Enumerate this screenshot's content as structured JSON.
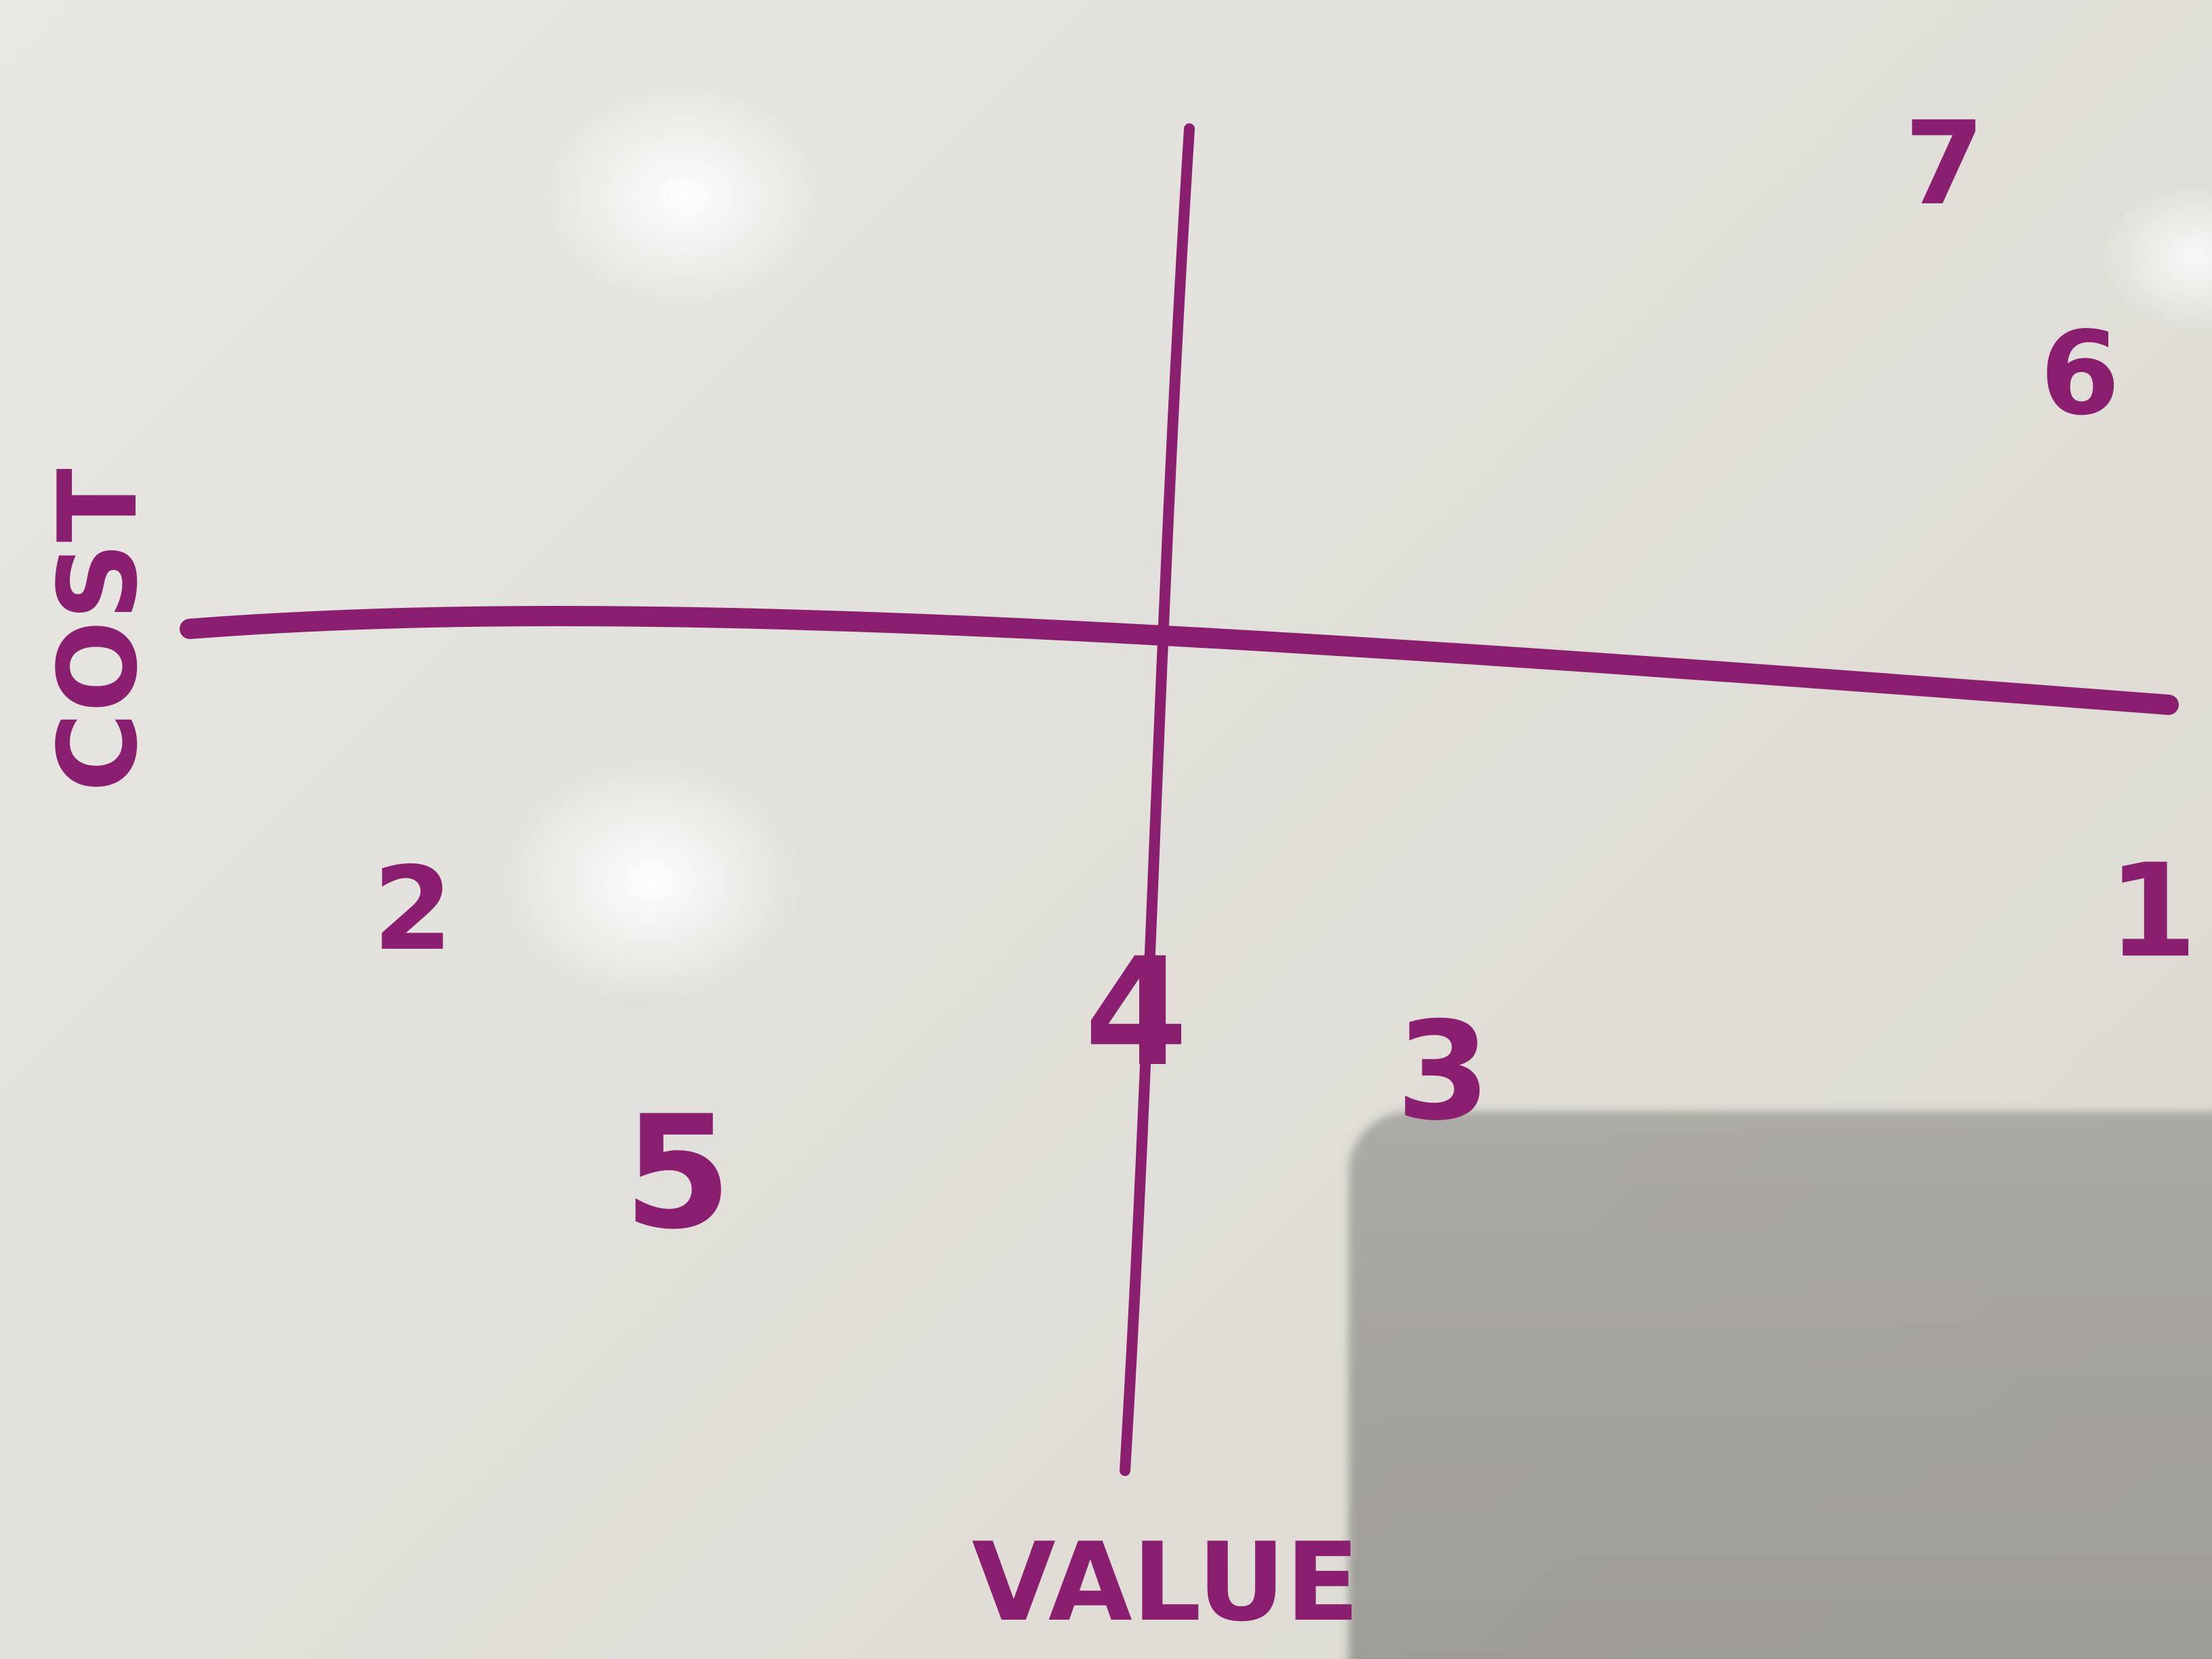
{
  "axes": {
    "vertical_label": "COST",
    "horizontal_label": "VALUE"
  },
  "points": [
    {
      "label": "1"
    },
    {
      "label": "2"
    },
    {
      "label": "3"
    },
    {
      "label": "4"
    },
    {
      "label": "5"
    },
    {
      "label": "6"
    },
    {
      "label": "7"
    }
  ],
  "colors": {
    "marker": "#8a1f70",
    "board": "#e4e2dc"
  }
}
